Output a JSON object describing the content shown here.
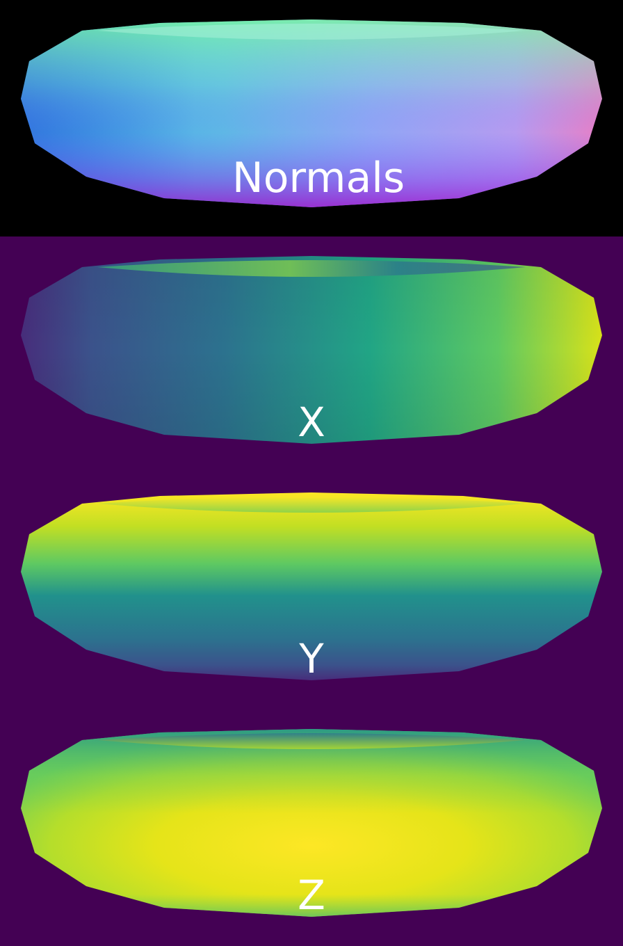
{
  "panels": [
    {
      "label": "Normals",
      "background": "#000000"
    },
    {
      "label": "X",
      "background": "#440154"
    },
    {
      "label": "Y",
      "background": "#440154"
    },
    {
      "label": "Z",
      "background": "#440154"
    }
  ],
  "colormap": "viridis",
  "viridis": {
    "dark": "#440154",
    "blue": "#3b528b",
    "teal": "#21918c",
    "green": "#5ec962",
    "yellow": "#fde725"
  }
}
